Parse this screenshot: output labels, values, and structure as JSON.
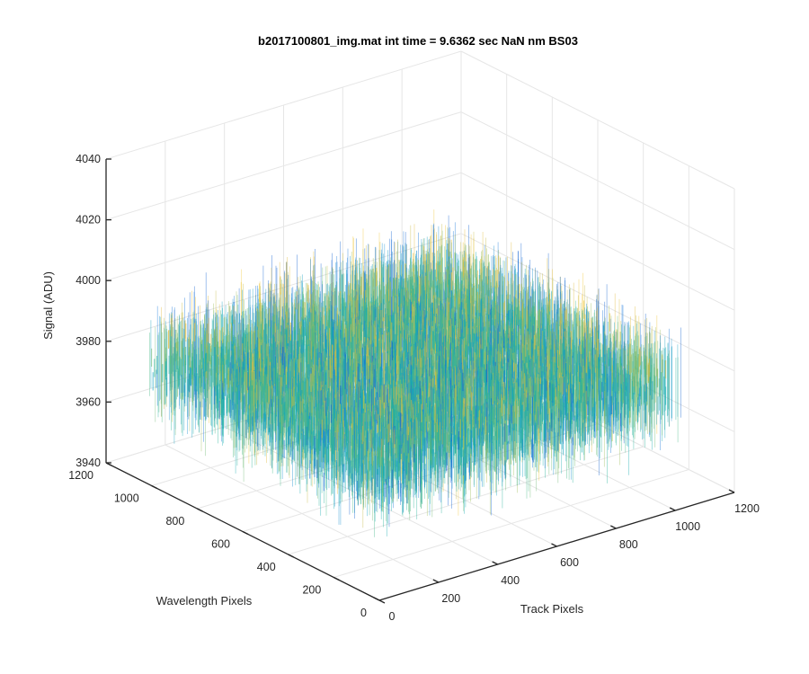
{
  "chart_data": {
    "type": "surface",
    "title": "b2017100801_img.mat int time = 9.6362 sec  NaN nm BS03",
    "xlabel": "Track Pixels",
    "ylabel": "Wavelength Pixels",
    "zlabel": "Signal (ADU)",
    "xlim": [
      0,
      1200
    ],
    "ylim": [
      0,
      1200
    ],
    "zlim": [
      3940,
      4040
    ],
    "xticks": [
      "0",
      "200",
      "400",
      "600",
      "800",
      "1000",
      "1200"
    ],
    "yticks": [
      "0",
      "200",
      "400",
      "600",
      "800",
      "1000",
      "1200"
    ],
    "zticks": [
      "3940",
      "3960",
      "3980",
      "4000",
      "4020",
      "4040"
    ],
    "x_data_range": [
      0,
      1024
    ],
    "y_data_range": [
      0,
      1024
    ],
    "signal_mean": 3980,
    "signal_spread": [
      3955,
      4010
    ],
    "colormap": "parula",
    "grid": true,
    "view": "3d"
  }
}
